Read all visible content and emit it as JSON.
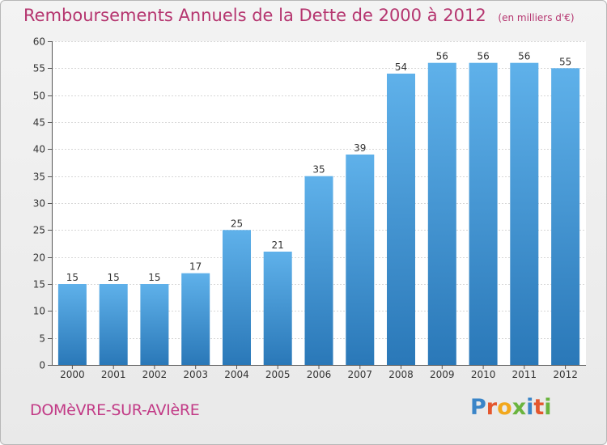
{
  "header": {
    "title": "Remboursements Annuels de la Dette de 2000 à 2012",
    "unit": "(en milliers d'€)"
  },
  "footer": {
    "commune": "DOMèVRE-SUR-AVIèRE",
    "logo_letters": [
      "P",
      "r",
      "o",
      "x",
      "i",
      "t",
      "i"
    ],
    "logo_colors": [
      "#3a85c8",
      "#e4572e",
      "#f2a81d",
      "#6ab43e",
      "#3a85c8",
      "#e4572e",
      "#6ab43e"
    ]
  },
  "colors": {
    "bar_top": "#5fb1ea",
    "bar_bottom": "#2a78b8",
    "title": "#b5356f"
  },
  "chart_data": {
    "type": "bar",
    "title": "Remboursements Annuels de la Dette de 2000 à 2012",
    "categories": [
      "2000",
      "2001",
      "2002",
      "2003",
      "2004",
      "2005",
      "2006",
      "2007",
      "2008",
      "2009",
      "2010",
      "2011",
      "2012"
    ],
    "values": [
      15,
      15,
      15,
      17,
      25,
      21,
      35,
      39,
      54,
      56,
      56,
      56,
      55
    ],
    "ylim": [
      0,
      60
    ],
    "yticks": [
      0,
      5,
      10,
      15,
      20,
      25,
      30,
      35,
      40,
      45,
      50,
      55,
      60
    ],
    "grid": true,
    "legend": "none"
  }
}
